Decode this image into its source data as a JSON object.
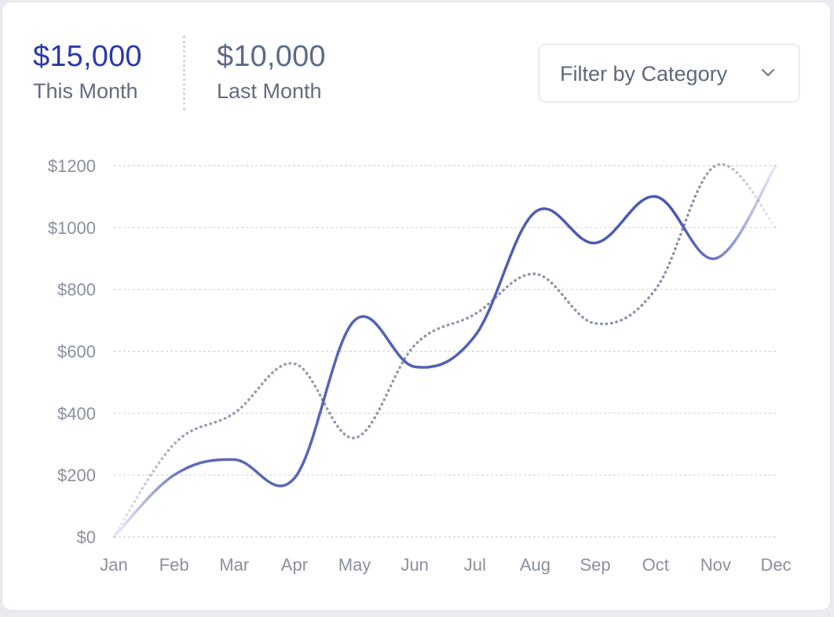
{
  "summary": {
    "this_month": {
      "value": "$15,000",
      "label": "This Month"
    },
    "last_month": {
      "value": "$10,000",
      "label": "Last Month"
    }
  },
  "filter": {
    "label": "Filter by Category",
    "icon": "chevron-down-icon"
  },
  "colors": {
    "this_month_line": "#4a58b2",
    "last_month_line": "#8c93a8",
    "grid": "#d0d4da",
    "axis_text": "#8a909c"
  },
  "chart_data": {
    "type": "line",
    "categories": [
      "Jan",
      "Feb",
      "Mar",
      "Apr",
      "May",
      "Jun",
      "Jul",
      "Aug",
      "Sep",
      "Oct",
      "Nov",
      "Dec"
    ],
    "series": [
      {
        "values": [
          0,
          200,
          250,
          190,
          700,
          550,
          650,
          1050,
          950,
          1100,
          900,
          1200
        ],
        "style": "solid"
      },
      {
        "values": [
          0,
          300,
          400,
          560,
          320,
          620,
          720,
          850,
          690,
          800,
          1200,
          1000
        ],
        "style": "dotted"
      }
    ],
    "yticks": [
      "$0",
      "$200",
      "$400",
      "$600",
      "$800",
      "$1000",
      "$1200"
    ],
    "ylim": [
      0,
      1200
    ],
    "grid": true,
    "legend": "none"
  }
}
